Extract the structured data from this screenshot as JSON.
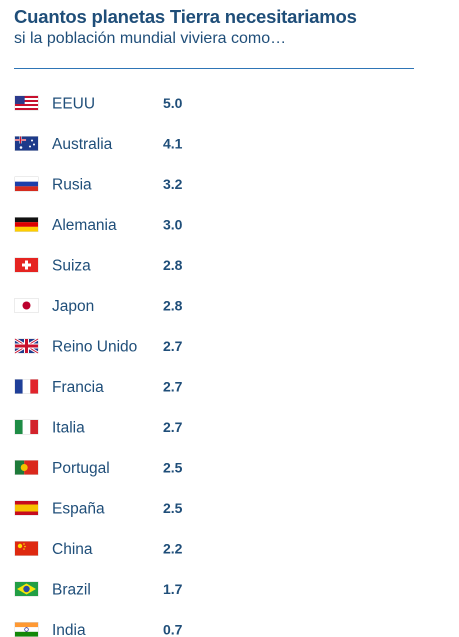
{
  "header": {
    "title": "Cuantos planetas Tierra necesitariamos",
    "subtitle": "si la población mundial viviera como…"
  },
  "colors": {
    "text": "#1f4e79",
    "rule": "#2e75b6",
    "ocean": "#2f6fa8",
    "land": "#6aa64a"
  },
  "chart_data": {
    "type": "bar",
    "unit_icon": "earth-globe-icon",
    "categories": [
      "EEUU",
      "Australia",
      "Rusia",
      "Alemania",
      "Suiza",
      "Japon",
      "Reino Unido",
      "Francia",
      "Italia",
      "Portugal",
      "España",
      "China",
      "Brazil",
      "India"
    ],
    "labels": [
      "5.0",
      "4.1",
      "3.2",
      "3.0",
      "2.8",
      "2.8",
      "2.7",
      "2.7",
      "2.7",
      "2.5",
      "2.5",
      "2.2",
      "1.7",
      "0.7"
    ],
    "values": [
      5.0,
      4.1,
      3.2,
      3.0,
      2.8,
      2.8,
      2.7,
      2.7,
      2.7,
      2.5,
      2.5,
      2.2,
      1.7,
      0.7
    ],
    "flags": [
      "us",
      "au",
      "ru",
      "de",
      "ch",
      "jp",
      "gb",
      "fr",
      "it",
      "pt",
      "es",
      "cn",
      "br",
      "in"
    ]
  }
}
